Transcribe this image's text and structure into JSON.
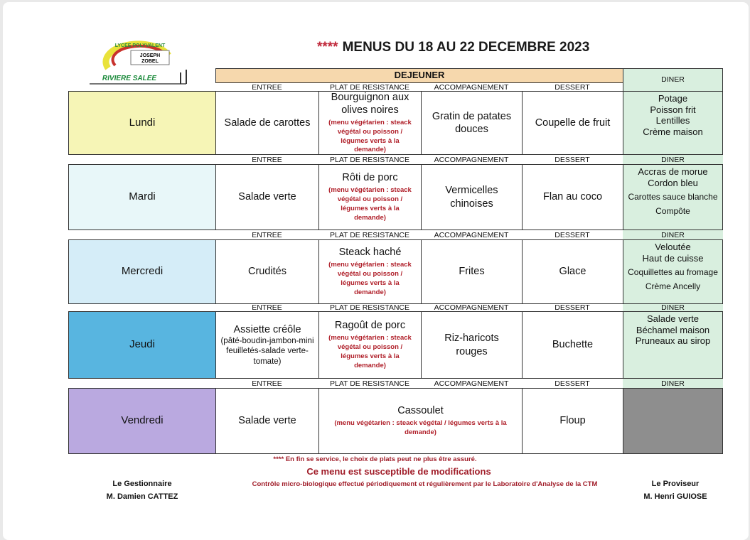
{
  "logo": {
    "top_text": "LYCEE POLYVALENT",
    "name": "JOSEPH ZOBEL",
    "place": "RIVIERE SALEE"
  },
  "title": {
    "stars": "****",
    "text": "MENUS DU 18 AU 22 DECEMBRE 2023"
  },
  "header": {
    "dejeuner": "DEJEUNER",
    "diner": "DINER"
  },
  "columns": [
    "ENTREE",
    "PLAT DE RESISTANCE",
    "ACCOMPAGNEMENT",
    "DESSERT",
    "DINER"
  ],
  "colors": {
    "dejeuner_header": "#f6d8ad",
    "diner": "#d9efdf",
    "closed": "#8e8e8e",
    "note": "#b0202a"
  },
  "days": [
    {
      "day": "Lundi",
      "color": "#f6f5b6",
      "entree": "Salade de carottes",
      "entree_note": "",
      "plat": "Bourguignon aux olives noires",
      "plat_note": "(menu végétarien : steack végétal ou poisson / légumes verts à la demande)",
      "accompagnement": "Gratin de patates douces",
      "dessert": "Coupelle de fruit",
      "diner": [
        "Potage",
        "Poisson frit",
        "Lentilles",
        "Crème maison"
      ]
    },
    {
      "day": "Mardi",
      "color": "#e8f7f9",
      "entree": "Salade verte",
      "entree_note": "",
      "plat": "Rôti de porc",
      "plat_note": "(menu végétarien : steack végétal ou poisson / légumes verts à la demande)",
      "accompagnement": "Vermicelles chinoises",
      "dessert": "Flan au coco",
      "diner": [
        "Accras de morue",
        "Cordon bleu",
        "Carottes sauce blanche",
        "Compôte"
      ]
    },
    {
      "day": "Mercredi",
      "color": "#d5edf8",
      "entree": "Crudités",
      "entree_note": "",
      "plat": "Steack haché",
      "plat_note": "(menu végétarien : steack végétal ou poisson / légumes verts à la demande)",
      "accompagnement": "Frites",
      "dessert": "Glace",
      "diner": [
        "Veloutée",
        "Haut de cuisse",
        "Coquillettes au fromage",
        "Crème Ancelly"
      ]
    },
    {
      "day": "Jeudi",
      "color": "#58b5e0",
      "entree": "Assiette créôle",
      "entree_note": "(pâté-boudin-jambon-mini feuilletés-salade verte-tomate)",
      "plat": "Ragoût de porc",
      "plat_note": "(menu végétarien : steack végétal ou poisson / légumes verts à la demande)",
      "accompagnement": "Riz-haricots rouges",
      "dessert": "Buchette",
      "diner": [
        "Salade verte",
        "Béchamel maison",
        "Pruneaux au sirop"
      ]
    },
    {
      "day": "Vendredi",
      "color": "#baa9e0",
      "entree": "Salade verte",
      "entree_note": "",
      "plat": "Cassoulet",
      "plat_note": "(menu végétarien : steack végétal / légumes verts à la demande)",
      "accompagnement": "",
      "dessert": "Floup",
      "diner": []
    }
  ],
  "footer": {
    "warning": "**** En fin se service, le choix de plats peut ne plus être assuré.",
    "modifications": "Ce menu est susceptible de modifications",
    "control": "Contrôle micro-biologique effectué périodiquement et régulièrement par le Laboratoire d'Analyse de la CTM"
  },
  "signatures": {
    "left_role": "Le Gestionnaire",
    "left_name": "M. Damien CATTEZ",
    "right_role": "Le Proviseur",
    "right_name": "M. Henri GUIOSE"
  }
}
